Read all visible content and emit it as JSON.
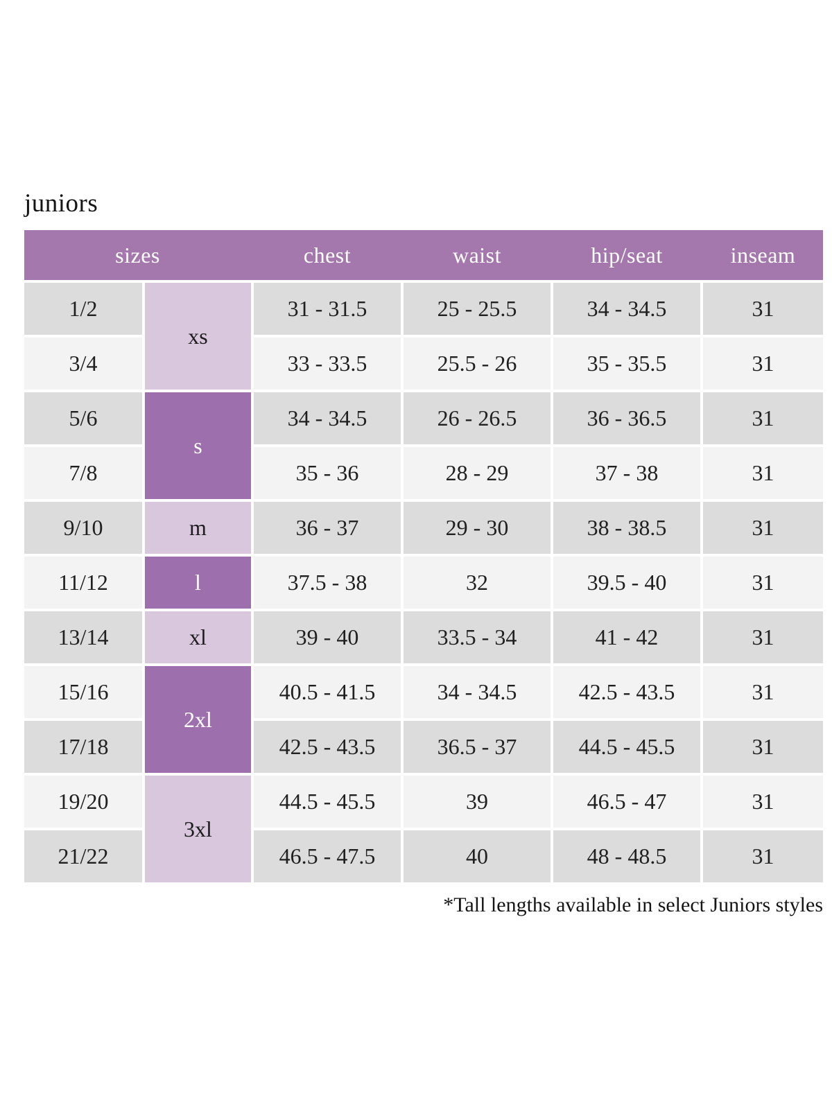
{
  "page": {
    "title": "juniors",
    "footnote": "*Tall lengths available in select Juniors styles"
  },
  "colors": {
    "header_bg": "#a478ad",
    "size_group_dark_bg": "#9d6fad",
    "size_group_light_bg": "#d9c7de",
    "row_gray_bg": "#dcdcdc",
    "row_light_bg": "#f3f3f3",
    "header_text": "#ffffff",
    "body_text": "#202020"
  },
  "table": {
    "headers": [
      "sizes",
      "chest",
      "waist",
      "hip/seat",
      "inseam"
    ],
    "size_groups": [
      {
        "label": "xs",
        "rows": 2,
        "shade": "light"
      },
      {
        "label": "s",
        "rows": 2,
        "shade": "dark"
      },
      {
        "label": "m",
        "rows": 1,
        "shade": "light"
      },
      {
        "label": "l",
        "rows": 1,
        "shade": "dark"
      },
      {
        "label": "xl",
        "rows": 1,
        "shade": "light"
      },
      {
        "label": "2xl",
        "rows": 2,
        "shade": "dark"
      },
      {
        "label": "3xl",
        "rows": 2,
        "shade": "light"
      }
    ],
    "rows": [
      {
        "size": "1/2",
        "group": "xs",
        "chest": "31 - 31.5",
        "waist": "25 - 25.5",
        "hip_seat": "34 - 34.5",
        "inseam": "31"
      },
      {
        "size": "3/4",
        "group": "xs",
        "chest": "33 - 33.5",
        "waist": "25.5 - 26",
        "hip_seat": "35 - 35.5",
        "inseam": "31"
      },
      {
        "size": "5/6",
        "group": "s",
        "chest": "34 - 34.5",
        "waist": "26 - 26.5",
        "hip_seat": "36 - 36.5",
        "inseam": "31"
      },
      {
        "size": "7/8",
        "group": "s",
        "chest": "35 - 36",
        "waist": "28 - 29",
        "hip_seat": "37 - 38",
        "inseam": "31"
      },
      {
        "size": "9/10",
        "group": "m",
        "chest": "36 - 37",
        "waist": "29 - 30",
        "hip_seat": "38 - 38.5",
        "inseam": "31"
      },
      {
        "size": "11/12",
        "group": "l",
        "chest": "37.5 - 38",
        "waist": "32",
        "hip_seat": "39.5 - 40",
        "inseam": "31"
      },
      {
        "size": "13/14",
        "group": "xl",
        "chest": "39 - 40",
        "waist": "33.5 - 34",
        "hip_seat": "41 - 42",
        "inseam": "31"
      },
      {
        "size": "15/16",
        "group": "2xl",
        "chest": "40.5 - 41.5",
        "waist": "34 - 34.5",
        "hip_seat": "42.5 - 43.5",
        "inseam": "31"
      },
      {
        "size": "17/18",
        "group": "2xl",
        "chest": "42.5 - 43.5",
        "waist": "36.5 - 37",
        "hip_seat": "44.5 - 45.5",
        "inseam": "31"
      },
      {
        "size": "19/20",
        "group": "3xl",
        "chest": "44.5 - 45.5",
        "waist": "39",
        "hip_seat": "46.5 - 47",
        "inseam": "31"
      },
      {
        "size": "21/22",
        "group": "3xl",
        "chest": "46.5 - 47.5",
        "waist": "40",
        "hip_seat": "48 - 48.5",
        "inseam": "31"
      }
    ]
  }
}
